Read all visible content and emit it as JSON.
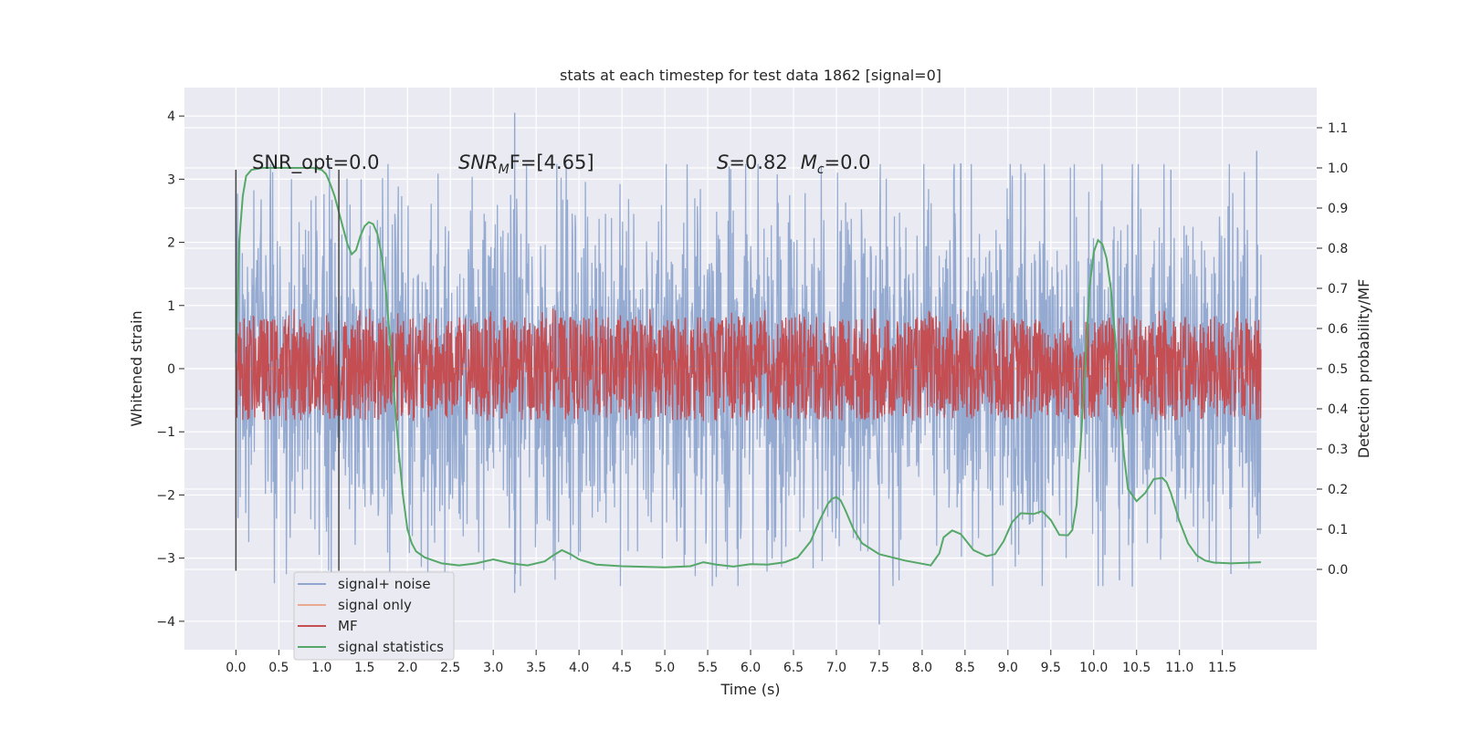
{
  "chart_data": {
    "type": "line",
    "title": "stats at each timestep for test data 1862 [signal=0]",
    "xlabel": "Time (s)",
    "ylabel": "Whitened strain",
    "ylabel_right": "Detection probability/MF",
    "xlim": [
      -0.6,
      12.6
    ],
    "ylim": [
      -4.45,
      4.45
    ],
    "ylim_right": [
      -0.2,
      1.2
    ],
    "x_ticks": [
      "0.0",
      "0.5",
      "1.0",
      "1.5",
      "2.0",
      "2.5",
      "3.0",
      "3.5",
      "4.0",
      "4.5",
      "5.0",
      "5.5",
      "6.0",
      "6.5",
      "7.0",
      "7.5",
      "8.0",
      "8.5",
      "9.0",
      "9.5",
      "10.0",
      "10.5",
      "11.0",
      "11.5"
    ],
    "y_ticks": [
      "4",
      "3",
      "2",
      "1",
      "0",
      "−1",
      "−2",
      "−3",
      "−4"
    ],
    "y_right_ticks": [
      "1.1",
      "1.0",
      "0.9",
      "0.8",
      "0.7",
      "0.6",
      "0.5",
      "0.4",
      "0.3",
      "0.2",
      "0.1",
      "0.0"
    ],
    "grid": true,
    "legend_position": "bottom-left",
    "annotations": {
      "snr_opt": "SNR_opt=0.0",
      "snr_mf_prefix": "SNR",
      "snr_mf_sub": "M",
      "snr_mf_suffix": "F=[4.65]",
      "s_label": "S",
      "s_value": "=0.82",
      "mc_label": "M",
      "mc_sub": "c",
      "mc_value": "=0.0"
    },
    "vlines": [
      0.0,
      1.2
    ],
    "series": [
      {
        "name": "signal+ noise",
        "color": "#8fa6cf",
        "kind": "noise",
        "envelope": {
          "mean_abs": 1.1,
          "max_peak": 4.05,
          "min_peak": -4.05,
          "peaks_up": [
            [
              3.25,
              4.05
            ],
            [
              11.9,
              3.45
            ],
            [
              5.75,
              3.2
            ],
            [
              9.2,
              3.1
            ],
            [
              10.9,
              3.15
            ]
          ],
          "peaks_down": [
            [
              7.5,
              -4.05
            ],
            [
              3.25,
              -3.55
            ],
            [
              10.45,
              -3.45
            ],
            [
              10.3,
              -3.35
            ],
            [
              5.6,
              -3.3
            ],
            [
              11.6,
              -3.25
            ]
          ]
        }
      },
      {
        "name": "signal only",
        "color": "#e8a990",
        "kind": "flat",
        "value": 0.0
      },
      {
        "name": "MF",
        "color": "#c44e52",
        "kind": "mf",
        "envelope": {
          "base": 0.5,
          "amplitude": 0.13,
          "max": 0.65
        }
      },
      {
        "name": "signal statistics",
        "color": "#55a868",
        "kind": "line",
        "x": [
          0.0,
          0.04,
          0.08,
          0.12,
          0.18,
          0.3,
          0.5,
          0.7,
          0.9,
          1.0,
          1.05,
          1.1,
          1.15,
          1.2,
          1.25,
          1.3,
          1.35,
          1.4,
          1.45,
          1.5,
          1.55,
          1.6,
          1.65,
          1.7,
          1.75,
          1.8,
          1.85,
          1.9,
          1.95,
          2.0,
          2.05,
          2.1,
          2.2,
          2.4,
          2.6,
          2.8,
          3.0,
          3.2,
          3.4,
          3.6,
          3.7,
          3.8,
          3.9,
          4.0,
          4.2,
          4.5,
          5.0,
          5.3,
          5.45,
          5.6,
          5.8,
          6.0,
          6.2,
          6.4,
          6.55,
          6.7,
          6.8,
          6.9,
          6.95,
          7.0,
          7.05,
          7.1,
          7.2,
          7.3,
          7.5,
          7.8,
          8.1,
          8.2,
          8.25,
          8.35,
          8.45,
          8.6,
          8.75,
          8.85,
          8.95,
          9.05,
          9.15,
          9.3,
          9.4,
          9.5,
          9.6,
          9.7,
          9.75,
          9.8,
          9.85,
          9.9,
          9.95,
          10.0,
          10.05,
          10.1,
          10.15,
          10.2,
          10.25,
          10.3,
          10.35,
          10.4,
          10.5,
          10.6,
          10.7,
          10.8,
          10.85,
          10.9,
          10.95,
          11.0,
          11.1,
          11.2,
          11.3,
          11.4,
          11.6,
          11.95
        ],
        "y": [
          0.54,
          0.82,
          0.93,
          0.98,
          0.995,
          1.0,
          1.0,
          1.0,
          1.0,
          0.995,
          0.985,
          0.96,
          0.93,
          0.89,
          0.85,
          0.81,
          0.785,
          0.795,
          0.83,
          0.855,
          0.865,
          0.86,
          0.835,
          0.78,
          0.69,
          0.56,
          0.42,
          0.29,
          0.18,
          0.1,
          0.065,
          0.045,
          0.03,
          0.015,
          0.01,
          0.015,
          0.025,
          0.015,
          0.01,
          0.02,
          0.035,
          0.048,
          0.038,
          0.025,
          0.012,
          0.008,
          0.005,
          0.008,
          0.018,
          0.012,
          0.007,
          0.013,
          0.012,
          0.018,
          0.03,
          0.07,
          0.12,
          0.163,
          0.176,
          0.18,
          0.172,
          0.15,
          0.1,
          0.065,
          0.038,
          0.022,
          0.01,
          0.04,
          0.08,
          0.097,
          0.088,
          0.048,
          0.033,
          0.038,
          0.07,
          0.118,
          0.14,
          0.138,
          0.145,
          0.123,
          0.086,
          0.085,
          0.098,
          0.16,
          0.32,
          0.5,
          0.7,
          0.79,
          0.82,
          0.81,
          0.775,
          0.7,
          0.58,
          0.43,
          0.29,
          0.2,
          0.17,
          0.19,
          0.225,
          0.228,
          0.217,
          0.19,
          0.155,
          0.12,
          0.065,
          0.035,
          0.022,
          0.017,
          0.015,
          0.018
        ]
      }
    ]
  }
}
